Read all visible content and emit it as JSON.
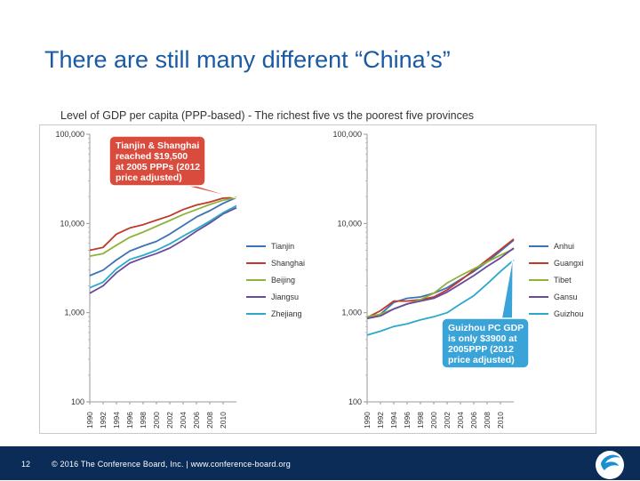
{
  "slide": {
    "title": "There are still many different “China’s”",
    "subtitle": "Level of GDP per capita (PPP-based) - The richest five vs the poorest five provinces",
    "page_number": "12",
    "footer": "© 2016 The Conference Board, Inc.  |  www.conference-board.org"
  },
  "chart_data": [
    {
      "type": "line",
      "title": "",
      "xlabel": "",
      "ylabel": "",
      "yscale": "log",
      "ylim": [
        100,
        100000
      ],
      "xlim": [
        1990,
        2012
      ],
      "y_ticks": [
        "100",
        "1,000",
        "10,000",
        "100,000"
      ],
      "y_tick_values": [
        100,
        1000,
        10000,
        100000
      ],
      "x_ticks": [
        "1990",
        "1992",
        "1994",
        "1996",
        "1998",
        "2000",
        "2002",
        "2004",
        "2006",
        "2008",
        "2010"
      ],
      "legend_position": "right",
      "grid": false,
      "x": [
        1990,
        1992,
        1994,
        1996,
        1998,
        2000,
        2002,
        2004,
        2006,
        2008,
        2010,
        2012
      ],
      "series": [
        {
          "name": "Tianjin",
          "color": "#3b73b9",
          "values": [
            2600,
            3000,
            3900,
            4900,
            5600,
            6300,
            7600,
            9500,
            11800,
            13900,
            16800,
            19500
          ]
        },
        {
          "name": "Shanghai",
          "color": "#c0392b",
          "values": [
            5000,
            5400,
            7600,
            8900,
            9700,
            10900,
            12200,
            14300,
            16100,
            17400,
            19200,
            19500
          ]
        },
        {
          "name": "Beijing",
          "color": "#8db33a",
          "values": [
            4300,
            4600,
            5700,
            7000,
            8000,
            9300,
            10800,
            12600,
            14300,
            16300,
            18200,
            19500
          ]
        },
        {
          "name": "Jiangsu",
          "color": "#6a4a9c",
          "values": [
            1650,
            2000,
            2800,
            3600,
            4100,
            4600,
            5300,
            6500,
            8200,
            10100,
            12800,
            15000
          ]
        },
        {
          "name": "Zhejiang",
          "color": "#2aa9c9",
          "values": [
            1900,
            2200,
            3100,
            3950,
            4400,
            5000,
            5900,
            7200,
            8700,
            10600,
            13200,
            15800
          ]
        }
      ],
      "annotation": "Tianjin & Shanghai reached $19,500 at 2005 PPPs (2012 price adjusted)"
    },
    {
      "type": "line",
      "title": "",
      "xlabel": "",
      "ylabel": "",
      "yscale": "log",
      "ylim": [
        100,
        100000
      ],
      "xlim": [
        1990,
        2012
      ],
      "y_ticks": [
        "100",
        "1,000",
        "10,000",
        "100,000"
      ],
      "y_tick_values": [
        100,
        1000,
        10000,
        100000
      ],
      "x_ticks": [
        "1990",
        "1992",
        "1994",
        "1996",
        "1998",
        "2000",
        "2002",
        "2004",
        "2006",
        "2008",
        "2010"
      ],
      "legend_position": "right",
      "grid": false,
      "x": [
        1990,
        1992,
        1994,
        1996,
        1998,
        2000,
        2002,
        2004,
        2006,
        2008,
        2010,
        2012
      ],
      "series": [
        {
          "name": "Anhui",
          "color": "#3b73b9",
          "values": [
            880,
            960,
            1300,
            1450,
            1500,
            1650,
            1900,
            2350,
            2900,
            3700,
            4900,
            6500
          ]
        },
        {
          "name": "Guangxi",
          "color": "#c0392b",
          "values": [
            880,
            1050,
            1350,
            1350,
            1400,
            1500,
            1800,
            2300,
            3000,
            3900,
            5100,
            6700
          ]
        },
        {
          "name": "Tibet",
          "color": "#8db33a",
          "values": [
            900,
            960,
            1100,
            1250,
            1400,
            1650,
            2150,
            2600,
            3100,
            3700,
            4400,
            5200
          ]
        },
        {
          "name": "Gansu",
          "color": "#6a4a9c",
          "values": [
            860,
            920,
            1100,
            1250,
            1350,
            1450,
            1700,
            2100,
            2600,
            3300,
            4100,
            5300
          ]
        },
        {
          "name": "Guizhou",
          "color": "#2aa9c9",
          "values": [
            560,
            620,
            700,
            750,
            830,
            900,
            1000,
            1250,
            1550,
            2100,
            2900,
            3900
          ]
        }
      ],
      "annotation": "Guizhou PC GDP is only $3900 at 2005PPP (2012 price adjusted)"
    }
  ],
  "colors": {
    "title": "#1a5aa3",
    "footer_bg": "#0b2c57",
    "callout_red": "#d94b3d",
    "callout_blue": "#3aa3d8"
  }
}
